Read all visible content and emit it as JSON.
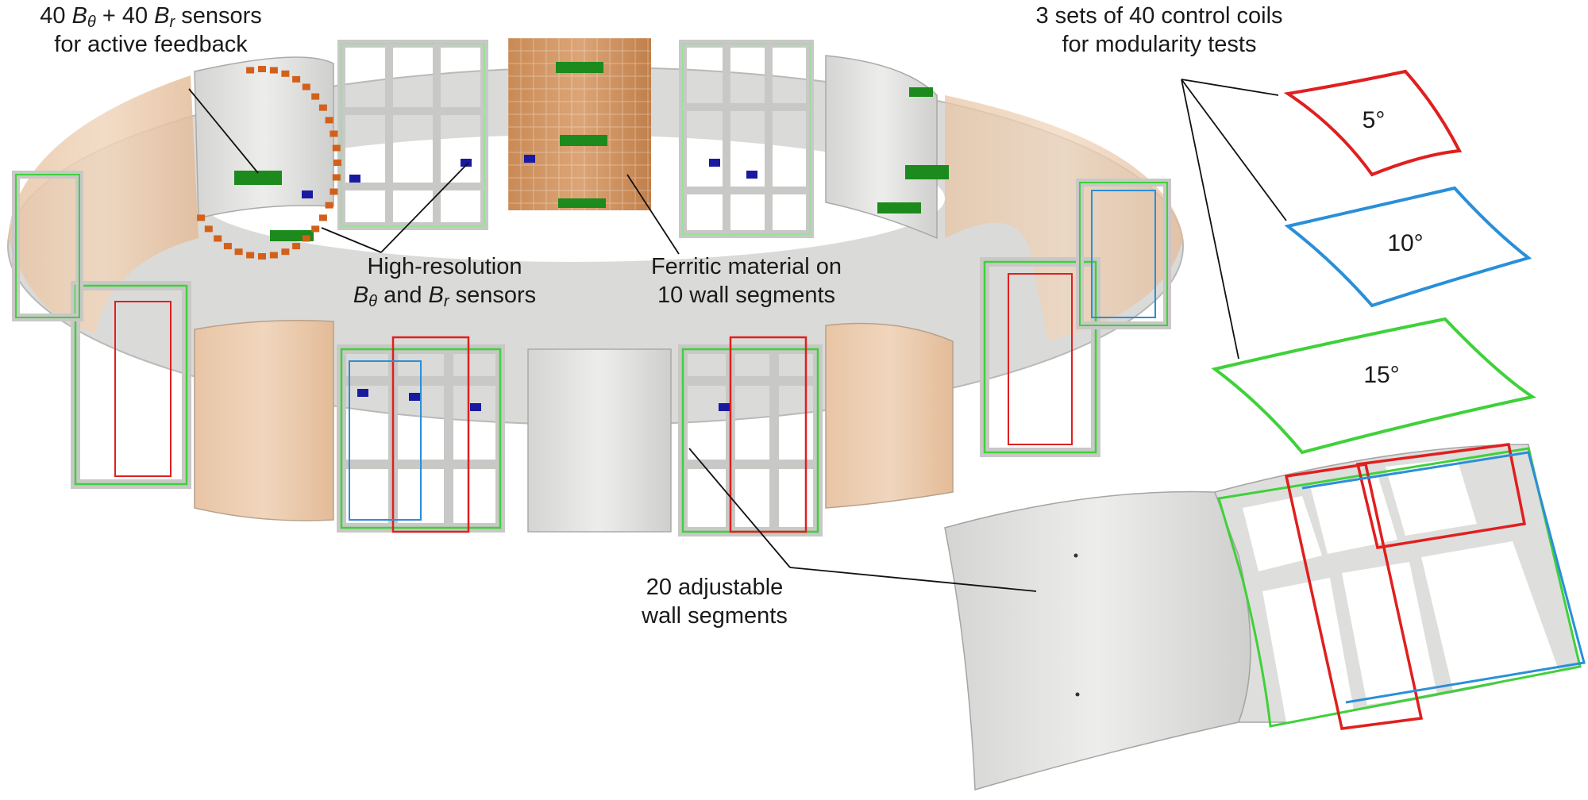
{
  "labels": {
    "feedback": {
      "line1_prefix": "40 ",
      "line1_sym1": "B",
      "line1_sub1": "θ",
      "line1_mid": " + 40 ",
      "line1_sym2": "B",
      "line1_sub2": "r",
      "line1_suffix": " sensors",
      "line2": "for active feedback"
    },
    "highres": {
      "line1": "High-resolution",
      "line2_sym1": "B",
      "line2_sub1": "θ",
      "line2_mid": " and ",
      "line2_sym2": "B",
      "line2_sub2": "r",
      "line2_suffix": " sensors"
    },
    "ferritic": {
      "line1": "Ferritic material on",
      "line2": "10 wall segments"
    },
    "adjustable": {
      "line1": "20 adjustable",
      "line2": "wall segments"
    },
    "coils": {
      "line1": "3 sets of 40 control coils",
      "line2": "for modularity tests"
    }
  },
  "coils": [
    {
      "angle": "5°",
      "color": "#e01f1f"
    },
    {
      "angle": "10°",
      "color": "#2a8fd8"
    },
    {
      "angle": "15°",
      "color": "#3fd13a"
    }
  ],
  "colors": {
    "wall": "#e4e4e2",
    "wall_shade": "#c9c9c7",
    "ferritic": "#e9c3a0",
    "ferritic_dark": "#c98a55",
    "sensor_feedback": "#1c8a1c",
    "sensor_highres": "#1a1aa0",
    "sensor_orange": "#d2601a",
    "coil_red": "#e01f1f",
    "coil_blue": "#2a8fd8",
    "coil_green": "#3fd13a"
  }
}
